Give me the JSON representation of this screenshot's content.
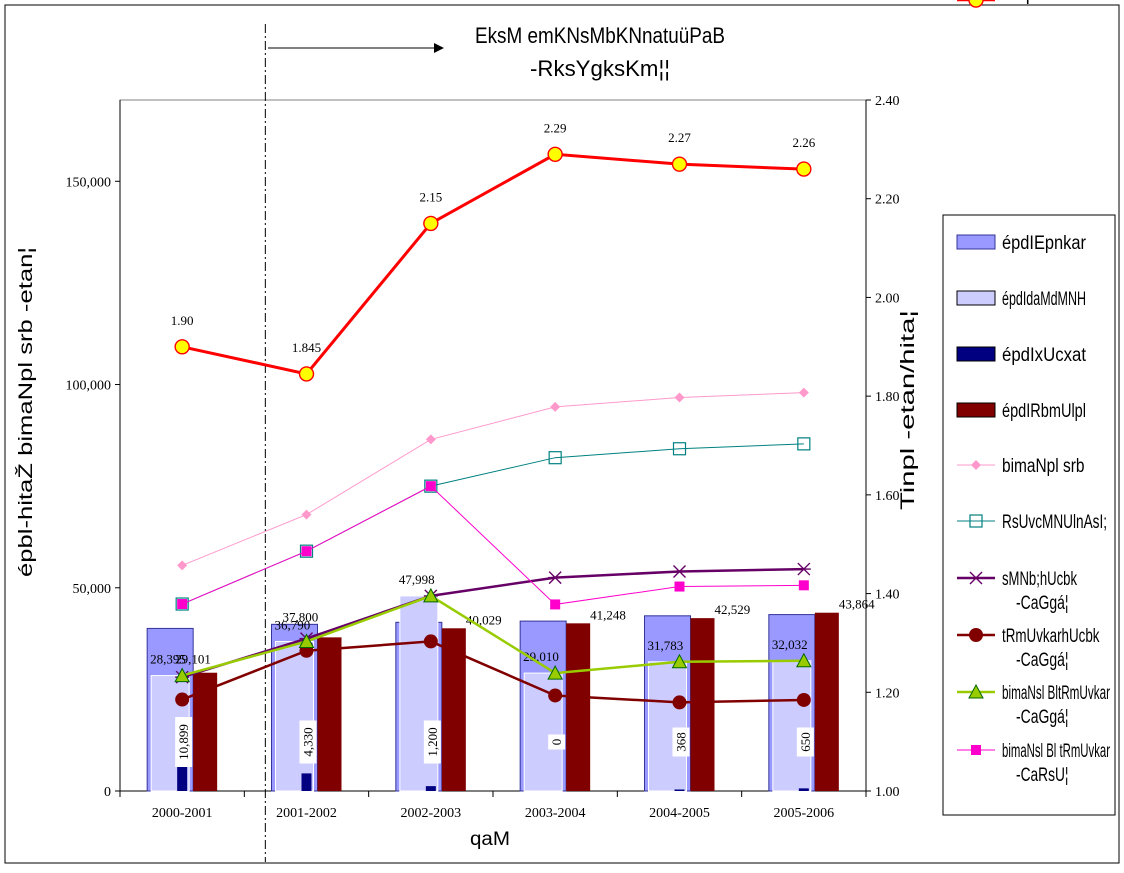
{
  "chart_data": {
    "type": "bar",
    "title_lines": [
      "EksM emKNsMbKNnatuüPaB",
      "-RksYgksKm¦¦"
    ],
    "xlabel": "qaM",
    "ylabel_left": "épbl-hitaŽ bimaNpl srb -etan¦",
    "ylabel_right": "Tinpl -etan/hita¦",
    "categories": [
      "2000-2001",
      "2001-2002",
      "2002-2003",
      "2003-2004",
      "2004-2005",
      "2005-2006"
    ],
    "y_left": {
      "min": 0,
      "max": 170000,
      "ticks": [
        0,
        50000,
        100000,
        150000
      ],
      "tick_labels": [
        "0",
        "50,000",
        "100,000",
        "150,000"
      ]
    },
    "y_right": {
      "min": 1.0,
      "max": 2.4,
      "ticks": [
        1.0,
        1.2,
        1.4,
        1.6,
        1.8,
        2.0,
        2.2,
        2.4
      ],
      "tick_labels": [
        "1.00",
        "1.20",
        "1.40",
        "1.60",
        "1.80",
        "2.00",
        "2.20",
        "2.40"
      ]
    },
    "divider_after_category": 0,
    "bar_series": [
      {
        "name": "épdIEpnkar",
        "color": "#9999ff",
        "values": [
          40000,
          41000,
          41500,
          41800,
          43100,
          43400
        ]
      },
      {
        "name": "épdIdaMdMNH",
        "color": "#ccccff",
        "values": [
          28395,
          36790,
          47998,
          29010,
          31783,
          32032
        ]
      },
      {
        "name": "épdIxUcxat",
        "color": "#000080",
        "values": [
          10899,
          4330,
          1200,
          0,
          368,
          650
        ]
      },
      {
        "name": "épdIRbmUlpl",
        "color": "#800000",
        "values": [
          29101,
          37800,
          40029,
          41248,
          42529,
          43864
        ]
      }
    ],
    "line_series": [
      {
        "name": "bimaNpl srb",
        "axis": "left",
        "color": "#ff99cc",
        "marker": "diamond",
        "values": [
          55500,
          68000,
          86500,
          94500,
          96800,
          98000
        ]
      },
      {
        "name": "RsUvcMNUlnAsI;",
        "axis": "left",
        "color": "#008080",
        "marker": "open-square",
        "values": [
          46000,
          59000,
          75000,
          82000,
          84200,
          85400
        ]
      },
      {
        "name": "sMNb;hUcbk -CaGgá¦",
        "axis": "left",
        "color": "#660066",
        "marker": "star",
        "values": [
          28000,
          37500,
          48000,
          52500,
          54000,
          54600
        ]
      },
      {
        "name": "tRmUvkarhUcbk -CaGgá¦",
        "axis": "left",
        "color": "#800000",
        "marker": "circle",
        "values": [
          22500,
          34500,
          36800,
          23500,
          21800,
          22400
        ]
      },
      {
        "name": "bimaNsl BltRmUvkar -CaGgá¦",
        "axis": "left",
        "color": "#99cc00",
        "marker": "triangle",
        "values": [
          28395,
          36790,
          47998,
          29010,
          31783,
          32032
        ]
      },
      {
        "name": "bimaNsl Bl tRmUvkar -CaRsU¦",
        "axis": "left",
        "color": "#ff00cc",
        "marker": "square",
        "values": [
          46000,
          59000,
          75000,
          45900,
          50300,
          50600
        ]
      },
      {
        "name": "Tinpl",
        "axis": "right",
        "color": "#ff0000",
        "marker": "big-circle",
        "values": [
          1.9,
          1.845,
          2.15,
          2.29,
          2.27,
          2.26
        ],
        "labels": [
          "1.90",
          "1.845",
          "2.15",
          "2.29",
          "2.27",
          "2.26"
        ]
      }
    ],
    "bar_labels": {
      "b": [
        "28,395",
        "36,790",
        "47,998",
        "29,010",
        "31,783",
        "32,032"
      ],
      "c": [
        "10,899",
        "4,330",
        "1,200",
        "0",
        "368",
        "650"
      ],
      "d": [
        "29,101",
        "37,800",
        "40,029",
        "41,248",
        "42,529",
        "43,864"
      ]
    },
    "legend_position": "right",
    "grid": false
  }
}
